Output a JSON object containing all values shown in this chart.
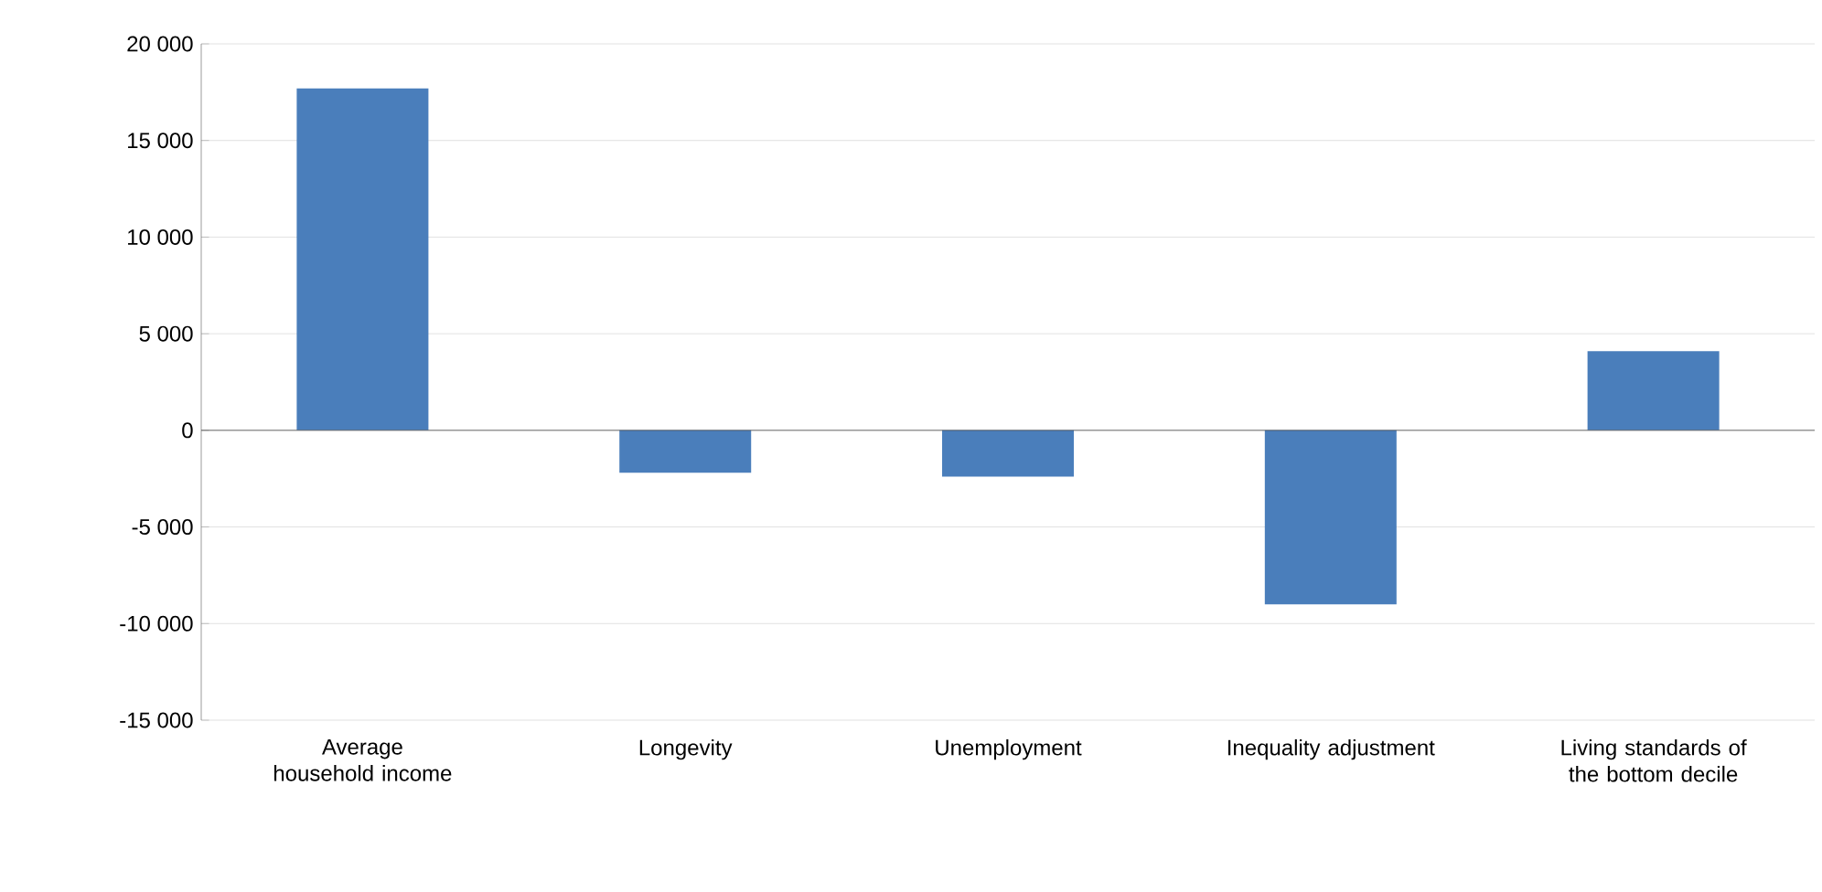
{
  "chart_data": {
    "type": "bar",
    "categories": [
      "Average household income",
      "Longevity",
      "Unemployment",
      "Inequality adjustment",
      "Living standards of the bottom decile"
    ],
    "values": [
      17700,
      -2200,
      -2400,
      -9000,
      4100
    ],
    "color": "#4a7ebb",
    "ylim": [
      -15000,
      20000
    ],
    "yticks": [
      {
        "value": -15000,
        "label": "-15 000"
      },
      {
        "value": -10000,
        "label": "-10 000"
      },
      {
        "value": -5000,
        "label": "-5 000"
      },
      0,
      {
        "value": 5000,
        "label": "5 000"
      },
      {
        "value": 10000,
        "label": "10 000"
      },
      {
        "value": 15000,
        "label": "15 000"
      },
      {
        "value": 20000,
        "label": "20 000"
      }
    ],
    "grid": "y"
  }
}
